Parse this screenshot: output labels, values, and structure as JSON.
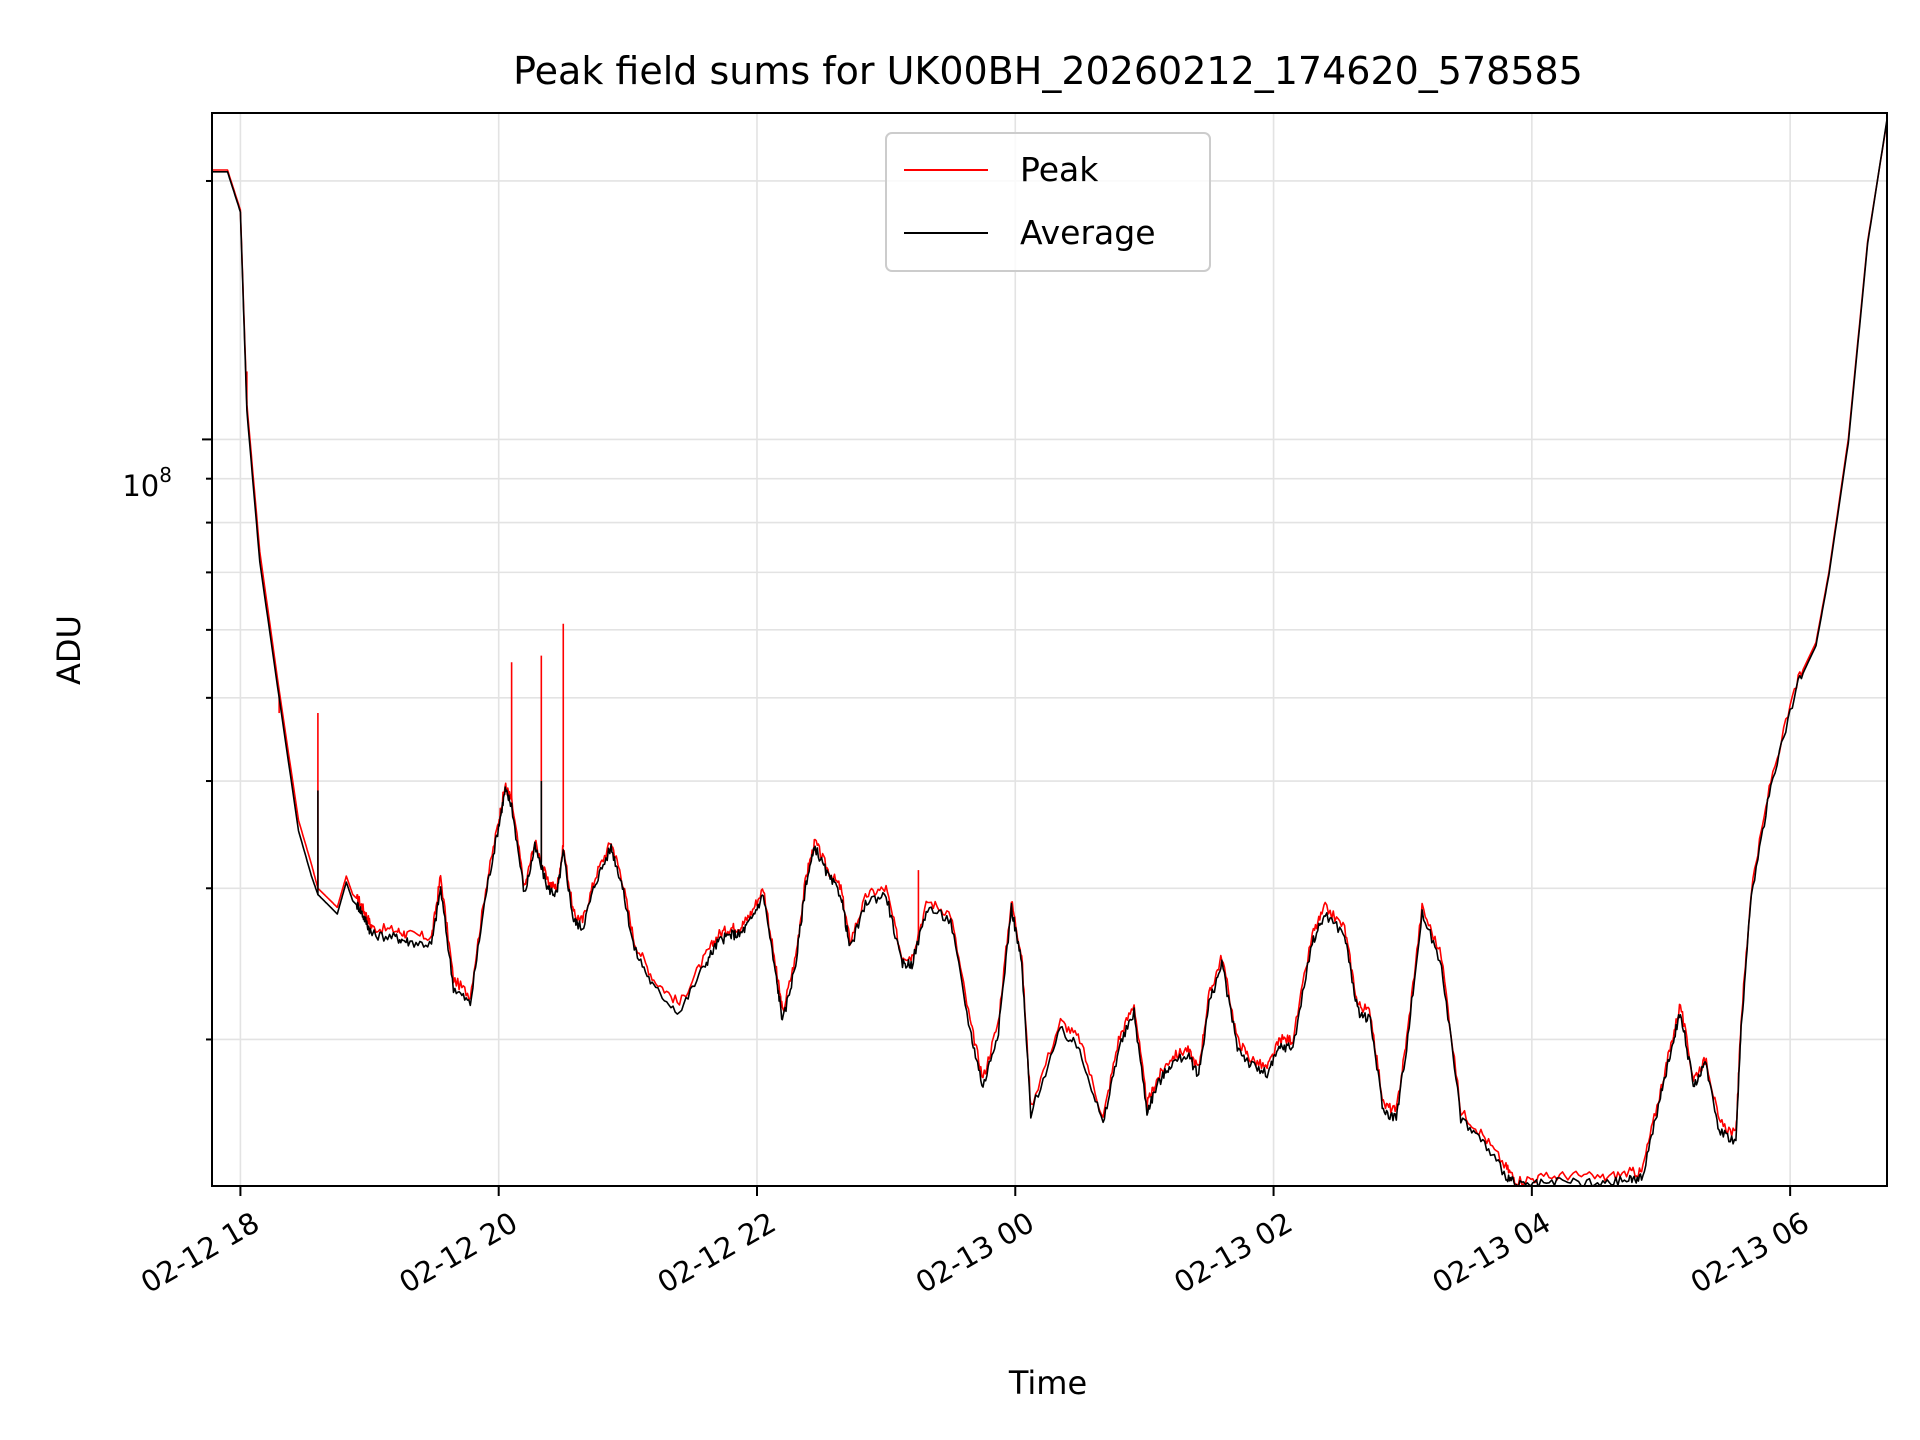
{
  "chart_data": {
    "type": "line",
    "title": "Peak field sums for UK00BH_20260212_174620_578585",
    "xlabel": "Time",
    "ylabel": "ADU",
    "yscale": "log",
    "ylim": [
      13500000,
      240000000
    ],
    "xlim_hours": [
      -0.22,
      12.75
    ],
    "x_unit": "hours since 02-12 18:00",
    "y_major_tick_label": "10^8",
    "x_tick_labels": [
      "02-12 18",
      "02-12 20",
      "02-12 22",
      "02-13 00",
      "02-13 02",
      "02-13 04",
      "02-13 06"
    ],
    "x_tick_hours": [
      0,
      2,
      4,
      6,
      8,
      10,
      12
    ],
    "y_minor_ticks": [
      20000000,
      30000000,
      40000000,
      50000000,
      60000000,
      70000000,
      80000000,
      90000000,
      200000000
    ],
    "legend": {
      "position": "upper center",
      "entries": [
        "Peak",
        "Average"
      ]
    },
    "grid": true,
    "series": [
      {
        "name": "Peak",
        "color": "#ff0000",
        "x": [
          -0.22,
          -0.1,
          0,
          0.05,
          0.15,
          0.3,
          0.45,
          0.55,
          0.6,
          0.7,
          0.75,
          0.82,
          0.87,
          0.92,
          0.97,
          1.02,
          1.2,
          1.3,
          1.48,
          1.55,
          1.65,
          1.78,
          1.9,
          2.0,
          2.05,
          2.1,
          2.2,
          2.28,
          2.38,
          2.45,
          2.5,
          2.58,
          2.65,
          2.75,
          2.87,
          2.95,
          3.05,
          3.2,
          3.4,
          3.6,
          3.7,
          3.8,
          3.87,
          3.95,
          4.05,
          4.15,
          4.2,
          4.3,
          4.38,
          4.45,
          4.55,
          4.65,
          4.72,
          4.85,
          5.0,
          5.12,
          5.2,
          5.32,
          5.5,
          5.65,
          5.75,
          5.87,
          5.97,
          6.05,
          6.12,
          6.35,
          6.5,
          6.68,
          6.8,
          6.92,
          7.02,
          7.1,
          7.2,
          7.33,
          7.42,
          7.5,
          7.6,
          7.72,
          7.82,
          7.95,
          8.05,
          8.15,
          8.3,
          8.4,
          8.55,
          8.65,
          8.75,
          8.85,
          8.95,
          9.03,
          9.15,
          9.3,
          9.45,
          9.62,
          9.8,
          9.88,
          10.05,
          10.3,
          10.55,
          10.75,
          10.85,
          10.98,
          11.07,
          11.15,
          11.25,
          11.35,
          11.45,
          11.58,
          11.62,
          11.7,
          11.85,
          12.05,
          12.2,
          12.3,
          12.45,
          12.6,
          12.75
        ],
        "values": [
          206000000,
          206000000,
          185000000,
          110000000,
          74000000,
          51000000,
          36000000,
          32000000,
          30000000,
          29000000,
          28500000,
          31000000,
          29500000,
          29000000,
          28000000,
          27000000,
          26800000,
          26500000,
          26300000,
          31000000,
          23500000,
          22500000,
          30000000,
          36000000,
          39500000,
          38000000,
          30000000,
          34000000,
          30500000,
          30000000,
          33500000,
          28000000,
          27500000,
          31000000,
          34000000,
          31000000,
          26000000,
          23500000,
          22000000,
          25000000,
          26500000,
          27000000,
          27000000,
          28000000,
          30000000,
          24000000,
          21500000,
          25000000,
          31000000,
          34000000,
          31500000,
          30000000,
          26000000,
          29500000,
          30000000,
          25000000,
          25000000,
          29000000,
          28000000,
          21000000,
          18000000,
          21000000,
          29000000,
          25000000,
          16700000,
          21000000,
          20000000,
          16200000,
          20000000,
          22000000,
          16800000,
          18000000,
          19000000,
          19500000,
          18500000,
          22500000,
          25000000,
          20000000,
          19000000,
          18500000,
          20000000,
          20000000,
          26500000,
          28500000,
          27000000,
          22000000,
          21500000,
          16800000,
          16500000,
          20000000,
          28500000,
          25000000,
          16500000,
          15500000,
          14200000,
          13700000,
          13800000,
          13900000,
          13800000,
          14000000,
          14000000,
          17000000,
          19500000,
          22000000,
          18000000,
          19000000,
          16000000,
          15500000,
          21000000,
          30000000,
          40000000,
          52000000,
          58000000,
          70000000,
          100000000,
          170000000,
          235000000
        ],
        "spikes": [
          [
            0.05,
            120000000
          ],
          [
            0.3,
            48000000
          ],
          [
            0.6,
            30000000
          ],
          [
            0.6,
            48000000
          ],
          [
            2.1,
            55000000
          ],
          [
            2.33,
            56000000
          ],
          [
            2.5,
            61000000
          ],
          [
            5.25,
            31500000
          ]
        ]
      },
      {
        "name": "Average",
        "color": "#000000",
        "x": [
          -0.22,
          -0.1,
          0,
          0.05,
          0.15,
          0.3,
          0.45,
          0.55,
          0.6,
          0.7,
          0.75,
          0.82,
          0.87,
          0.92,
          0.97,
          1.02,
          1.2,
          1.3,
          1.48,
          1.55,
          1.65,
          1.78,
          1.9,
          2.0,
          2.05,
          2.1,
          2.2,
          2.28,
          2.38,
          2.45,
          2.5,
          2.58,
          2.65,
          2.75,
          2.87,
          2.95,
          3.05,
          3.2,
          3.4,
          3.6,
          3.7,
          3.8,
          3.87,
          3.95,
          4.05,
          4.15,
          4.2,
          4.3,
          4.38,
          4.45,
          4.55,
          4.65,
          4.72,
          4.85,
          5.0,
          5.12,
          5.2,
          5.32,
          5.5,
          5.65,
          5.75,
          5.87,
          5.97,
          6.05,
          6.12,
          6.35,
          6.5,
          6.68,
          6.8,
          6.92,
          7.02,
          7.1,
          7.2,
          7.33,
          7.42,
          7.5,
          7.6,
          7.72,
          7.82,
          7.95,
          8.05,
          8.15,
          8.3,
          8.4,
          8.55,
          8.65,
          8.75,
          8.85,
          8.95,
          9.03,
          9.15,
          9.3,
          9.45,
          9.62,
          9.8,
          9.88,
          10.05,
          10.3,
          10.55,
          10.75,
          10.85,
          10.98,
          11.07,
          11.15,
          11.25,
          11.35,
          11.45,
          11.58,
          11.62,
          11.7,
          11.85,
          12.05,
          12.2,
          12.3,
          12.45,
          12.6,
          12.75
        ],
        "values": [
          205000000,
          205000000,
          184000000,
          108000000,
          72000000,
          50000000,
          35000000,
          31000000,
          29500000,
          28500000,
          28000000,
          30500000,
          29000000,
          28500000,
          27500000,
          26500000,
          26300000,
          26000000,
          25800000,
          30000000,
          23000000,
          22000000,
          29500000,
          35500000,
          39000000,
          37500000,
          29500000,
          33500000,
          30000000,
          29500000,
          33000000,
          27500000,
          27000000,
          30500000,
          33500000,
          30500000,
          25500000,
          23000000,
          21500000,
          24500000,
          26000000,
          26500000,
          26500000,
          27500000,
          29500000,
          23500000,
          21000000,
          24500000,
          30500000,
          33500000,
          31000000,
          29500000,
          25500000,
          29000000,
          29500000,
          24500000,
          24500000,
          28500000,
          27500000,
          20500000,
          17600000,
          20500000,
          28500000,
          24500000,
          16400000,
          20500000,
          19500000,
          15900000,
          19500000,
          21500000,
          16500000,
          17700000,
          18700000,
          19200000,
          18200000,
          22000000,
          24500000,
          19600000,
          18700000,
          18200000,
          19600000,
          19600000,
          26000000,
          28000000,
          26500000,
          21600000,
          21000000,
          16500000,
          16200000,
          19600000,
          28000000,
          24500000,
          16200000,
          15200000,
          13900000,
          13500000,
          13550000,
          13650000,
          13550000,
          13750000,
          13750000,
          16700000,
          19200000,
          21600000,
          17700000,
          18700000,
          15700000,
          15200000,
          20600000,
          29500000,
          39500000,
          51500000,
          57500000,
          69500000,
          99000000,
          169000000,
          236000000
        ],
        "spikes": [
          [
            0.6,
            39000000
          ],
          [
            2.33,
            40000000
          ]
        ]
      }
    ]
  }
}
